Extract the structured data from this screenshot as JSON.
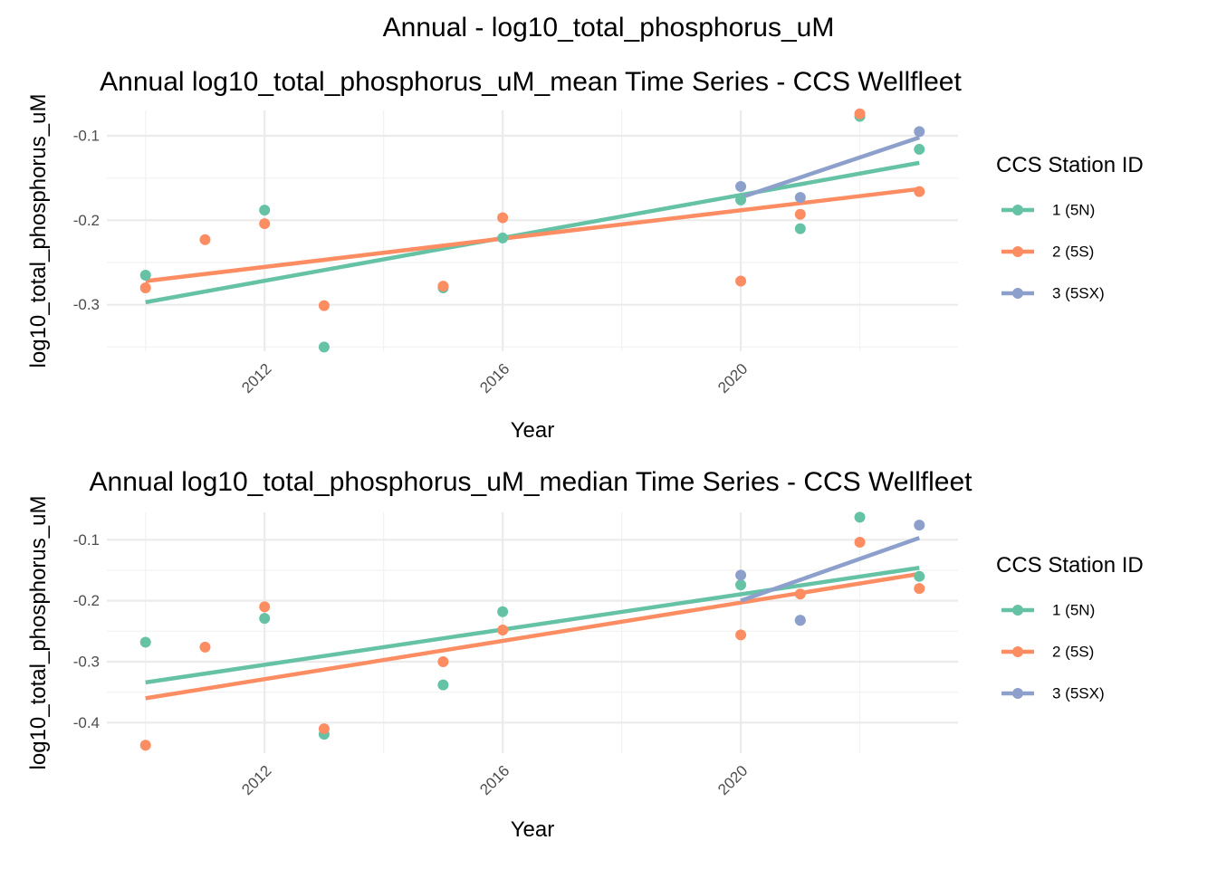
{
  "figure_title": "Annual - log10_total_phosphorus_uM",
  "colors": {
    "1 (5N)": "#66c2a5",
    "2 (5S)": "#fc8d62",
    "3 (5SX)": "#8da0cb"
  },
  "chart_data": [
    {
      "type": "scatter",
      "title": "Annual log10_total_phosphorus_uM_mean Time Series - CCS Wellfleet",
      "xlabel": "Year",
      "ylabel": "log10_total_phosphorus_uM",
      "xlim": [
        2009.35,
        2023.65
      ],
      "ylim": [
        -0.355,
        -0.07
      ],
      "xticks": [
        2012,
        2016,
        2020
      ],
      "xtick_labels": [
        "2012",
        "2016",
        "2020"
      ],
      "yticks": [
        -0.3,
        -0.2,
        -0.1
      ],
      "ytick_labels": [
        "-0.3",
        "-0.2",
        "-0.1"
      ],
      "grid": true,
      "legend": {
        "title": "CCS Station ID",
        "position": "right",
        "entries": [
          "1 (5N)",
          "2 (5S)",
          "3 (5SX)"
        ]
      },
      "series": [
        {
          "name": "1 (5N)",
          "points": [
            [
              2010,
              -0.265
            ],
            [
              2012,
              -0.188
            ],
            [
              2013,
              -0.35
            ],
            [
              2015,
              -0.28
            ],
            [
              2016,
              -0.221
            ],
            [
              2020,
              -0.176
            ],
            [
              2021,
              -0.21
            ],
            [
              2022,
              -0.077
            ],
            [
              2023,
              -0.116
            ]
          ],
          "trend": [
            [
              2010,
              -0.297
            ],
            [
              2023,
              -0.132
            ]
          ]
        },
        {
          "name": "2 (5S)",
          "points": [
            [
              2010,
              -0.28
            ],
            [
              2011,
              -0.223
            ],
            [
              2012,
              -0.204
            ],
            [
              2013,
              -0.301
            ],
            [
              2015,
              -0.278
            ],
            [
              2016,
              -0.197
            ],
            [
              2020,
              -0.272
            ],
            [
              2021,
              -0.193
            ],
            [
              2022,
              -0.074
            ],
            [
              2023,
              -0.166
            ]
          ],
          "trend": [
            [
              2010,
              -0.272
            ],
            [
              2023,
              -0.163
            ]
          ]
        },
        {
          "name": "3 (5SX)",
          "points": [
            [
              2020,
              -0.16
            ],
            [
              2021,
              -0.173
            ],
            [
              2023,
              -0.095
            ]
          ],
          "trend": [
            [
              2020,
              -0.173
            ],
            [
              2023,
              -0.102
            ]
          ]
        }
      ]
    },
    {
      "type": "scatter",
      "title": "Annual log10_total_phosphorus_uM_median Time Series - CCS Wellfleet",
      "xlabel": "Year",
      "ylabel": "log10_total_phosphorus_uM",
      "xlim": [
        2009.35,
        2023.65
      ],
      "ylim": [
        -0.45,
        -0.055
      ],
      "xticks": [
        2012,
        2016,
        2020
      ],
      "xtick_labels": [
        "2012",
        "2016",
        "2020"
      ],
      "yticks": [
        -0.4,
        -0.3,
        -0.2,
        -0.1
      ],
      "ytick_labels": [
        "-0.4",
        "-0.3",
        "-0.2",
        "-0.1"
      ],
      "grid": true,
      "legend": {
        "title": "CCS Station ID",
        "position": "right",
        "entries": [
          "1 (5N)",
          "2 (5S)",
          "3 (5SX)"
        ]
      },
      "series": [
        {
          "name": "1 (5N)",
          "points": [
            [
              2010,
              -0.268
            ],
            [
              2012,
              -0.229
            ],
            [
              2013,
              -0.419
            ],
            [
              2015,
              -0.338
            ],
            [
              2016,
              -0.218
            ],
            [
              2020,
              -0.174
            ],
            [
              2021,
              -0.232
            ],
            [
              2022,
              -0.063
            ],
            [
              2023,
              -0.16
            ]
          ],
          "trend": [
            [
              2010,
              -0.334
            ],
            [
              2023,
              -0.146
            ]
          ]
        },
        {
          "name": "2 (5S)",
          "points": [
            [
              2010,
              -0.437
            ],
            [
              2011,
              -0.276
            ],
            [
              2012,
              -0.21
            ],
            [
              2013,
              -0.41
            ],
            [
              2015,
              -0.3
            ],
            [
              2016,
              -0.248
            ],
            [
              2020,
              -0.256
            ],
            [
              2021,
              -0.189
            ],
            [
              2022,
              -0.104
            ],
            [
              2023,
              -0.18
            ]
          ],
          "trend": [
            [
              2010,
              -0.36
            ],
            [
              2023,
              -0.156
            ]
          ]
        },
        {
          "name": "3 (5SX)",
          "points": [
            [
              2020,
              -0.158
            ],
            [
              2021,
              -0.232
            ],
            [
              2023,
              -0.076
            ]
          ],
          "trend": [
            [
              2020,
              -0.2
            ],
            [
              2023,
              -0.097
            ]
          ]
        }
      ]
    }
  ]
}
